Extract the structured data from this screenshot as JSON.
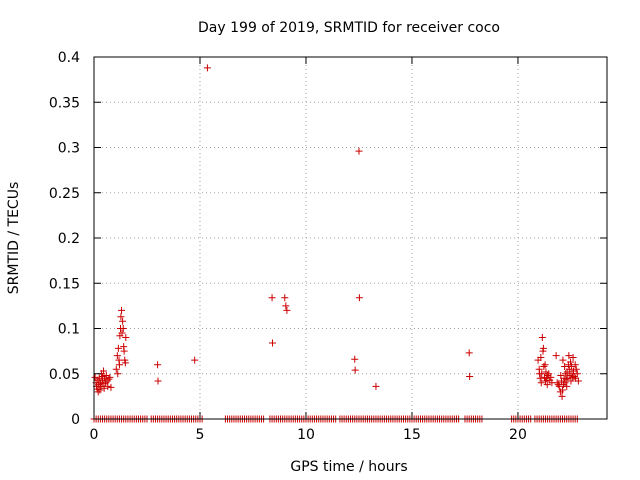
{
  "chart_data": {
    "type": "scatter",
    "title": "Day 199 of 2019, SRMTID for receiver coco",
    "xlabel": "GPS time / hours",
    "ylabel": "SRMTID / TECUs",
    "xlim": [
      0,
      24.2
    ],
    "ylim": [
      0,
      0.4
    ],
    "x_ticks": [
      0,
      5,
      10,
      15,
      20
    ],
    "x_tick_labels": [
      "0",
      "5",
      "10",
      "15",
      "20"
    ],
    "y_ticks": [
      0,
      0.05,
      0.1,
      0.15,
      0.2,
      0.25,
      0.3,
      0.35,
      0.4
    ],
    "y_tick_labels": [
      "0",
      "0.05",
      "0.1",
      "0.15",
      "0.2",
      "0.25",
      "0.3",
      "0.35",
      "0.4"
    ],
    "grid": true,
    "marker": "+",
    "series": [
      {
        "name": "SRMTID",
        "color": "#cc0000",
        "points": [
          [
            0.05,
            0.046
          ],
          [
            0.1,
            0.04
          ],
          [
            0.12,
            0.036
          ],
          [
            0.15,
            0.033
          ],
          [
            0.18,
            0.043
          ],
          [
            0.2,
            0.03
          ],
          [
            0.22,
            0.038
          ],
          [
            0.25,
            0.045
          ],
          [
            0.28,
            0.032
          ],
          [
            0.3,
            0.04
          ],
          [
            0.33,
            0.036
          ],
          [
            0.35,
            0.05
          ],
          [
            0.38,
            0.043
          ],
          [
            0.4,
            0.047
          ],
          [
            0.42,
            0.039
          ],
          [
            0.45,
            0.053
          ],
          [
            0.48,
            0.034
          ],
          [
            0.5,
            0.045
          ],
          [
            0.55,
            0.04
          ],
          [
            0.58,
            0.048
          ],
          [
            0.62,
            0.042
          ],
          [
            0.65,
            0.036
          ],
          [
            0.7,
            0.044
          ],
          [
            0.75,
            0.046
          ],
          [
            0.8,
            0.035
          ],
          [
            1.05,
            0.055
          ],
          [
            1.1,
            0.07
          ],
          [
            1.12,
            0.05
          ],
          [
            1.15,
            0.078
          ],
          [
            1.18,
            0.065
          ],
          [
            1.2,
            0.06
          ],
          [
            1.22,
            0.092
          ],
          [
            1.25,
            0.1
          ],
          [
            1.27,
            0.113
          ],
          [
            1.3,
            0.12
          ],
          [
            1.32,
            0.095
          ],
          [
            1.35,
            0.108
          ],
          [
            1.38,
            0.1
          ],
          [
            1.4,
            0.08
          ],
          [
            1.42,
            0.075
          ],
          [
            1.45,
            0.065
          ],
          [
            1.48,
            0.062
          ],
          [
            1.5,
            0.09
          ],
          [
            3.0,
            0.06
          ],
          [
            3.02,
            0.042
          ],
          [
            4.75,
            0.065
          ],
          [
            5.35,
            0.388
          ],
          [
            8.4,
            0.134
          ],
          [
            8.42,
            0.084
          ],
          [
            9.0,
            0.134
          ],
          [
            9.05,
            0.125
          ],
          [
            9.1,
            0.12
          ],
          [
            12.3,
            0.066
          ],
          [
            12.32,
            0.054
          ],
          [
            12.5,
            0.296
          ],
          [
            12.52,
            0.134
          ],
          [
            13.3,
            0.036
          ],
          [
            17.7,
            0.073
          ],
          [
            17.72,
            0.047
          ],
          [
            20.95,
            0.065
          ],
          [
            21.0,
            0.055
          ],
          [
            21.02,
            0.05
          ],
          [
            21.05,
            0.045
          ],
          [
            21.08,
            0.068
          ],
          [
            21.1,
            0.04
          ],
          [
            21.12,
            0.05
          ],
          [
            21.15,
            0.09
          ],
          [
            21.18,
            0.075
          ],
          [
            21.2,
            0.078
          ],
          [
            21.22,
            0.058
          ],
          [
            21.25,
            0.046
          ],
          [
            21.28,
            0.06
          ],
          [
            21.3,
            0.042
          ],
          [
            21.32,
            0.052
          ],
          [
            21.35,
            0.045
          ],
          [
            21.38,
            0.038
          ],
          [
            21.4,
            0.048
          ],
          [
            21.45,
            0.05
          ],
          [
            21.5,
            0.043
          ],
          [
            21.55,
            0.046
          ],
          [
            21.6,
            0.04
          ],
          [
            21.8,
            0.07
          ],
          [
            21.85,
            0.04
          ],
          [
            21.9,
            0.038
          ],
          [
            21.95,
            0.036
          ],
          [
            22.0,
            0.03
          ],
          [
            22.02,
            0.048
          ],
          [
            22.05,
            0.042
          ],
          [
            22.08,
            0.025
          ],
          [
            22.1,
            0.032
          ],
          [
            22.12,
            0.065
          ],
          [
            22.15,
            0.038
          ],
          [
            22.18,
            0.045
          ],
          [
            22.2,
            0.058
          ],
          [
            22.22,
            0.04
          ],
          [
            22.25,
            0.05
          ],
          [
            22.28,
            0.044
          ],
          [
            22.3,
            0.036
          ],
          [
            22.32,
            0.052
          ],
          [
            22.35,
            0.045
          ],
          [
            22.38,
            0.06
          ],
          [
            22.4,
            0.07
          ],
          [
            22.42,
            0.055
          ],
          [
            22.45,
            0.048
          ],
          [
            22.48,
            0.063
          ],
          [
            22.5,
            0.042
          ],
          [
            22.52,
            0.058
          ],
          [
            22.55,
            0.05
          ],
          [
            22.58,
            0.046
          ],
          [
            22.6,
            0.068
          ],
          [
            22.62,
            0.053
          ],
          [
            22.65,
            0.047
          ],
          [
            22.7,
            0.06
          ],
          [
            22.72,
            0.045
          ],
          [
            22.75,
            0.055
          ],
          [
            22.8,
            0.05
          ],
          [
            22.85,
            0.042
          ]
        ],
        "zero_runs": [
          [
            0.0,
            2.5
          ],
          [
            2.7,
            5.1
          ],
          [
            6.2,
            8.0
          ],
          [
            8.3,
            9.4
          ],
          [
            9.5,
            11.4
          ],
          [
            11.6,
            13.6
          ],
          [
            13.7,
            17.2
          ],
          [
            17.5,
            18.3
          ],
          [
            19.7,
            20.6
          ],
          [
            20.8,
            22.8
          ]
        ]
      }
    ]
  }
}
